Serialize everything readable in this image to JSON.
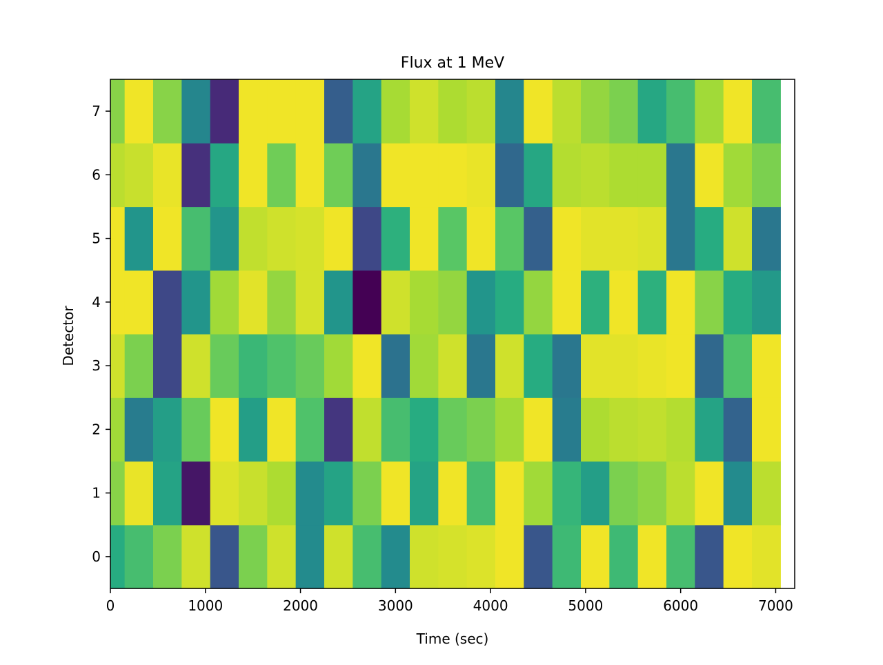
{
  "chart_data": {
    "type": "heatmap",
    "title": "Flux at 1 MeV",
    "xlabel": "Time (sec)",
    "ylabel": "Detector",
    "xlim": [
      0,
      7200
    ],
    "ylim": [
      -0.5,
      7.5
    ],
    "x_ticks": [
      0,
      1000,
      2000,
      3000,
      4000,
      5000,
      6000,
      7000
    ],
    "y_ticks": [
      0,
      1,
      2,
      3,
      4,
      5,
      6,
      7
    ],
    "colormap": "viridis",
    "rows": [
      {
        "detector": 0,
        "cells": [
          {
            "t0": 0,
            "t1": 150,
            "v": 0.62
          },
          {
            "t0": 150,
            "t1": 450,
            "v": 0.7
          },
          {
            "t0": 450,
            "t1": 750,
            "v": 0.8
          },
          {
            "t0": 750,
            "t1": 1050,
            "v": 0.93
          },
          {
            "t0": 1050,
            "t1": 1350,
            "v": 0.27
          },
          {
            "t0": 1350,
            "t1": 1650,
            "v": 0.8
          },
          {
            "t0": 1650,
            "t1": 1950,
            "v": 0.93
          },
          {
            "t0": 1950,
            "t1": 2250,
            "v": 0.48
          },
          {
            "t0": 2250,
            "t1": 2550,
            "v": 0.93
          },
          {
            "t0": 2550,
            "t1": 2850,
            "v": 0.7
          },
          {
            "t0": 2850,
            "t1": 3150,
            "v": 0.48
          },
          {
            "t0": 3150,
            "t1": 3450,
            "v": 0.93
          },
          {
            "t0": 3450,
            "t1": 3750,
            "v": 0.94
          },
          {
            "t0": 3750,
            "t1": 4050,
            "v": 0.95
          },
          {
            "t0": 4050,
            "t1": 4350,
            "v": 0.98
          },
          {
            "t0": 4350,
            "t1": 4650,
            "v": 0.27
          },
          {
            "t0": 4650,
            "t1": 4950,
            "v": 0.68
          },
          {
            "t0": 4950,
            "t1": 5250,
            "v": 0.98
          },
          {
            "t0": 5250,
            "t1": 5550,
            "v": 0.68
          },
          {
            "t0": 5550,
            "t1": 5850,
            "v": 0.98
          },
          {
            "t0": 5850,
            "t1": 6150,
            "v": 0.7
          },
          {
            "t0": 6150,
            "t1": 6450,
            "v": 0.27
          },
          {
            "t0": 6450,
            "t1": 6750,
            "v": 0.98
          },
          {
            "t0": 6750,
            "t1": 7050,
            "v": 0.96
          }
        ]
      },
      {
        "detector": 1,
        "cells": [
          {
            "t0": 0,
            "t1": 150,
            "v": 0.82
          },
          {
            "t0": 150,
            "t1": 450,
            "v": 0.97
          },
          {
            "t0": 450,
            "t1": 750,
            "v": 0.58
          },
          {
            "t0": 750,
            "t1": 1050,
            "v": 0.06
          },
          {
            "t0": 1050,
            "t1": 1350,
            "v": 0.95
          },
          {
            "t0": 1350,
            "t1": 1650,
            "v": 0.92
          },
          {
            "t0": 1650,
            "t1": 1950,
            "v": 0.88
          },
          {
            "t0": 1950,
            "t1": 2250,
            "v": 0.48
          },
          {
            "t0": 2250,
            "t1": 2550,
            "v": 0.58
          },
          {
            "t0": 2550,
            "t1": 2850,
            "v": 0.8
          },
          {
            "t0": 2850,
            "t1": 3150,
            "v": 0.98
          },
          {
            "t0": 3150,
            "t1": 3450,
            "v": 0.58
          },
          {
            "t0": 3450,
            "t1": 3750,
            "v": 0.98
          },
          {
            "t0": 3750,
            "t1": 4050,
            "v": 0.7
          },
          {
            "t0": 4050,
            "t1": 4350,
            "v": 0.98
          },
          {
            "t0": 4350,
            "t1": 4650,
            "v": 0.86
          },
          {
            "t0": 4650,
            "t1": 4950,
            "v": 0.66
          },
          {
            "t0": 4950,
            "t1": 5250,
            "v": 0.56
          },
          {
            "t0": 5250,
            "t1": 5550,
            "v": 0.8
          },
          {
            "t0": 5550,
            "t1": 5850,
            "v": 0.83
          },
          {
            "t0": 5850,
            "t1": 6150,
            "v": 0.9
          },
          {
            "t0": 6150,
            "t1": 6450,
            "v": 0.98
          },
          {
            "t0": 6450,
            "t1": 6750,
            "v": 0.48
          },
          {
            "t0": 6750,
            "t1": 7050,
            "v": 0.9
          }
        ]
      },
      {
        "detector": 2,
        "cells": [
          {
            "t0": 0,
            "t1": 150,
            "v": 0.86
          },
          {
            "t0": 150,
            "t1": 450,
            "v": 0.42
          },
          {
            "t0": 450,
            "t1": 750,
            "v": 0.56
          },
          {
            "t0": 750,
            "t1": 1050,
            "v": 0.77
          },
          {
            "t0": 1050,
            "t1": 1350,
            "v": 0.98
          },
          {
            "t0": 1350,
            "t1": 1650,
            "v": 0.56
          },
          {
            "t0": 1650,
            "t1": 1950,
            "v": 0.98
          },
          {
            "t0": 1950,
            "t1": 2250,
            "v": 0.72
          },
          {
            "t0": 2250,
            "t1": 2550,
            "v": 0.16
          },
          {
            "t0": 2550,
            "t1": 2850,
            "v": 0.91
          },
          {
            "t0": 2850,
            "t1": 3150,
            "v": 0.7
          },
          {
            "t0": 3150,
            "t1": 3450,
            "v": 0.62
          },
          {
            "t0": 3450,
            "t1": 3750,
            "v": 0.77
          },
          {
            "t0": 3750,
            "t1": 4050,
            "v": 0.8
          },
          {
            "t0": 4050,
            "t1": 4350,
            "v": 0.86
          },
          {
            "t0": 4350,
            "t1": 4650,
            "v": 0.98
          },
          {
            "t0": 4650,
            "t1": 4950,
            "v": 0.42
          },
          {
            "t0": 4950,
            "t1": 5250,
            "v": 0.88
          },
          {
            "t0": 5250,
            "t1": 5550,
            "v": 0.9
          },
          {
            "t0": 5550,
            "t1": 5850,
            "v": 0.91
          },
          {
            "t0": 5850,
            "t1": 6150,
            "v": 0.89
          },
          {
            "t0": 6150,
            "t1": 6450,
            "v": 0.58
          },
          {
            "t0": 6450,
            "t1": 6750,
            "v": 0.32
          },
          {
            "t0": 6750,
            "t1": 7050,
            "v": 0.98
          }
        ]
      },
      {
        "detector": 3,
        "cells": [
          {
            "t0": 0,
            "t1": 150,
            "v": 0.93
          },
          {
            "t0": 150,
            "t1": 450,
            "v": 0.8
          },
          {
            "t0": 450,
            "t1": 750,
            "v": 0.22
          },
          {
            "t0": 750,
            "t1": 1050,
            "v": 0.93
          },
          {
            "t0": 1050,
            "t1": 1350,
            "v": 0.77
          },
          {
            "t0": 1350,
            "t1": 1650,
            "v": 0.67
          },
          {
            "t0": 1650,
            "t1": 1950,
            "v": 0.72
          },
          {
            "t0": 1950,
            "t1": 2250,
            "v": 0.77
          },
          {
            "t0": 2250,
            "t1": 2550,
            "v": 0.86
          },
          {
            "t0": 2550,
            "t1": 2850,
            "v": 0.98
          },
          {
            "t0": 2850,
            "t1": 3150,
            "v": 0.38
          },
          {
            "t0": 3150,
            "t1": 3450,
            "v": 0.86
          },
          {
            "t0": 3450,
            "t1": 3750,
            "v": 0.93
          },
          {
            "t0": 3750,
            "t1": 4050,
            "v": 0.4
          },
          {
            "t0": 4050,
            "t1": 4350,
            "v": 0.93
          },
          {
            "t0": 4350,
            "t1": 4650,
            "v": 0.62
          },
          {
            "t0": 4650,
            "t1": 4950,
            "v": 0.4
          },
          {
            "t0": 4950,
            "t1": 5250,
            "v": 0.96
          },
          {
            "t0": 5250,
            "t1": 5550,
            "v": 0.96
          },
          {
            "t0": 5550,
            "t1": 5850,
            "v": 0.97
          },
          {
            "t0": 5850,
            "t1": 6150,
            "v": 0.98
          },
          {
            "t0": 6150,
            "t1": 6450,
            "v": 0.34
          },
          {
            "t0": 6450,
            "t1": 6750,
            "v": 0.72
          },
          {
            "t0": 6750,
            "t1": 7050,
            "v": 0.98
          }
        ]
      },
      {
        "detector": 4,
        "cells": [
          {
            "t0": 0,
            "t1": 150,
            "v": 0.98
          },
          {
            "t0": 150,
            "t1": 450,
            "v": 0.98
          },
          {
            "t0": 450,
            "t1": 750,
            "v": 0.22
          },
          {
            "t0": 750,
            "t1": 1050,
            "v": 0.52
          },
          {
            "t0": 1050,
            "t1": 1350,
            "v": 0.86
          },
          {
            "t0": 1350,
            "t1": 1650,
            "v": 0.96
          },
          {
            "t0": 1650,
            "t1": 1950,
            "v": 0.84
          },
          {
            "t0": 1950,
            "t1": 2250,
            "v": 0.94
          },
          {
            "t0": 2250,
            "t1": 2550,
            "v": 0.52
          },
          {
            "t0": 2550,
            "t1": 2850,
            "v": 0.0
          },
          {
            "t0": 2850,
            "t1": 3150,
            "v": 0.93
          },
          {
            "t0": 3150,
            "t1": 3450,
            "v": 0.87
          },
          {
            "t0": 3450,
            "t1": 3750,
            "v": 0.84
          },
          {
            "t0": 3750,
            "t1": 4050,
            "v": 0.52
          },
          {
            "t0": 4050,
            "t1": 4350,
            "v": 0.62
          },
          {
            "t0": 4350,
            "t1": 4650,
            "v": 0.84
          },
          {
            "t0": 4650,
            "t1": 4950,
            "v": 0.98
          },
          {
            "t0": 4950,
            "t1": 5250,
            "v": 0.64
          },
          {
            "t0": 5250,
            "t1": 5550,
            "v": 0.98
          },
          {
            "t0": 5550,
            "t1": 5850,
            "v": 0.64
          },
          {
            "t0": 5850,
            "t1": 6150,
            "v": 0.98
          },
          {
            "t0": 6150,
            "t1": 6450,
            "v": 0.82
          },
          {
            "t0": 6450,
            "t1": 6750,
            "v": 0.62
          },
          {
            "t0": 6750,
            "t1": 7050,
            "v": 0.54
          }
        ]
      },
      {
        "detector": 5,
        "cells": [
          {
            "t0": 0,
            "t1": 150,
            "v": 0.98
          },
          {
            "t0": 150,
            "t1": 450,
            "v": 0.52
          },
          {
            "t0": 450,
            "t1": 750,
            "v": 0.98
          },
          {
            "t0": 750,
            "t1": 1050,
            "v": 0.7
          },
          {
            "t0": 1050,
            "t1": 1350,
            "v": 0.52
          },
          {
            "t0": 1350,
            "t1": 1650,
            "v": 0.91
          },
          {
            "t0": 1650,
            "t1": 1950,
            "v": 0.93
          },
          {
            "t0": 1950,
            "t1": 2250,
            "v": 0.94
          },
          {
            "t0": 2250,
            "t1": 2550,
            "v": 0.98
          },
          {
            "t0": 2550,
            "t1": 2850,
            "v": 0.22
          },
          {
            "t0": 2850,
            "t1": 3150,
            "v": 0.64
          },
          {
            "t0": 3150,
            "t1": 3450,
            "v": 0.98
          },
          {
            "t0": 3450,
            "t1": 3750,
            "v": 0.74
          },
          {
            "t0": 3750,
            "t1": 4050,
            "v": 0.98
          },
          {
            "t0": 4050,
            "t1": 4350,
            "v": 0.74
          },
          {
            "t0": 4350,
            "t1": 4650,
            "v": 0.31
          },
          {
            "t0": 4650,
            "t1": 4950,
            "v": 0.98
          },
          {
            "t0": 4950,
            "t1": 5250,
            "v": 0.96
          },
          {
            "t0": 5250,
            "t1": 5550,
            "v": 0.96
          },
          {
            "t0": 5550,
            "t1": 5850,
            "v": 0.95
          },
          {
            "t0": 5850,
            "t1": 6150,
            "v": 0.4
          },
          {
            "t0": 6150,
            "t1": 6450,
            "v": 0.62
          },
          {
            "t0": 6450,
            "t1": 6750,
            "v": 0.93
          },
          {
            "t0": 6750,
            "t1": 7050,
            "v": 0.4
          }
        ]
      },
      {
        "detector": 6,
        "cells": [
          {
            "t0": 0,
            "t1": 150,
            "v": 0.9
          },
          {
            "t0": 150,
            "t1": 450,
            "v": 0.92
          },
          {
            "t0": 450,
            "t1": 750,
            "v": 0.97
          },
          {
            "t0": 750,
            "t1": 1050,
            "v": 0.14
          },
          {
            "t0": 1050,
            "t1": 1350,
            "v": 0.6
          },
          {
            "t0": 1350,
            "t1": 1650,
            "v": 0.98
          },
          {
            "t0": 1650,
            "t1": 1950,
            "v": 0.78
          },
          {
            "t0": 1950,
            "t1": 2250,
            "v": 0.98
          },
          {
            "t0": 2250,
            "t1": 2550,
            "v": 0.78
          },
          {
            "t0": 2550,
            "t1": 2850,
            "v": 0.4
          },
          {
            "t0": 2850,
            "t1": 3150,
            "v": 0.98
          },
          {
            "t0": 3150,
            "t1": 3450,
            "v": 0.98
          },
          {
            "t0": 3450,
            "t1": 3750,
            "v": 0.98
          },
          {
            "t0": 3750,
            "t1": 4050,
            "v": 0.97
          },
          {
            "t0": 4050,
            "t1": 4350,
            "v": 0.34
          },
          {
            "t0": 4350,
            "t1": 4650,
            "v": 0.6
          },
          {
            "t0": 4650,
            "t1": 4950,
            "v": 0.89
          },
          {
            "t0": 4950,
            "t1": 5250,
            "v": 0.9
          },
          {
            "t0": 5250,
            "t1": 5550,
            "v": 0.88
          },
          {
            "t0": 5550,
            "t1": 5850,
            "v": 0.88
          },
          {
            "t0": 5850,
            "t1": 6150,
            "v": 0.4
          },
          {
            "t0": 6150,
            "t1": 6450,
            "v": 0.98
          },
          {
            "t0": 6450,
            "t1": 6750,
            "v": 0.86
          },
          {
            "t0": 6750,
            "t1": 7050,
            "v": 0.8
          }
        ]
      },
      {
        "detector": 7,
        "cells": [
          {
            "t0": 0,
            "t1": 150,
            "v": 0.82
          },
          {
            "t0": 150,
            "t1": 450,
            "v": 0.98
          },
          {
            "t0": 450,
            "t1": 750,
            "v": 0.82
          },
          {
            "t0": 750,
            "t1": 1050,
            "v": 0.46
          },
          {
            "t0": 1050,
            "t1": 1350,
            "v": 0.12
          },
          {
            "t0": 1350,
            "t1": 1650,
            "v": 0.98
          },
          {
            "t0": 1650,
            "t1": 1950,
            "v": 0.98
          },
          {
            "t0": 1950,
            "t1": 2250,
            "v": 0.98
          },
          {
            "t0": 2250,
            "t1": 2550,
            "v": 0.3
          },
          {
            "t0": 2550,
            "t1": 2850,
            "v": 0.58
          },
          {
            "t0": 2850,
            "t1": 3150,
            "v": 0.87
          },
          {
            "t0": 3150,
            "t1": 3450,
            "v": 0.93
          },
          {
            "t0": 3450,
            "t1": 3750,
            "v": 0.88
          },
          {
            "t0": 3750,
            "t1": 4050,
            "v": 0.9
          },
          {
            "t0": 4050,
            "t1": 4350,
            "v": 0.46
          },
          {
            "t0": 4350,
            "t1": 4650,
            "v": 0.98
          },
          {
            "t0": 4650,
            "t1": 4950,
            "v": 0.9
          },
          {
            "t0": 4950,
            "t1": 5250,
            "v": 0.84
          },
          {
            "t0": 5250,
            "t1": 5550,
            "v": 0.8
          },
          {
            "t0": 5550,
            "t1": 5850,
            "v": 0.6
          },
          {
            "t0": 5850,
            "t1": 6150,
            "v": 0.7
          },
          {
            "t0": 6150,
            "t1": 6450,
            "v": 0.86
          },
          {
            "t0": 6450,
            "t1": 6750,
            "v": 0.98
          },
          {
            "t0": 6750,
            "t1": 7050,
            "v": 0.7
          }
        ]
      }
    ]
  }
}
